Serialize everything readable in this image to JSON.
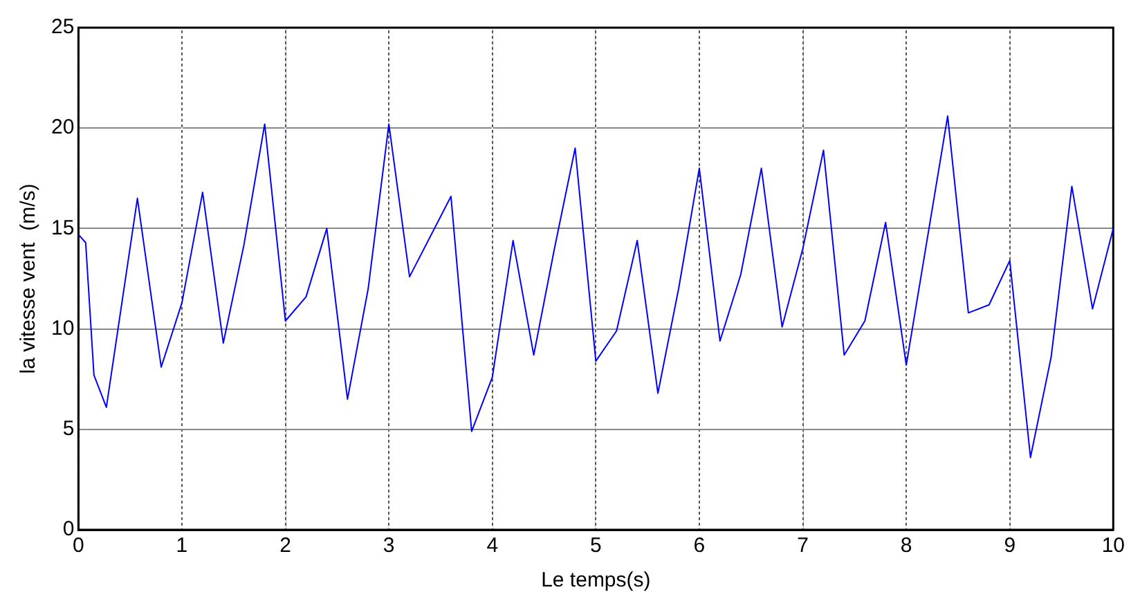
{
  "chart_data": {
    "type": "line",
    "xlabel": "Le temps(s)",
    "ylabel": "la vitesse vent  (m/s)",
    "x": [
      0,
      0.07,
      0.15,
      0.27,
      0.57,
      0.8,
      1.0,
      1.2,
      1.4,
      1.6,
      1.8,
      2.0,
      2.2,
      2.4,
      2.6,
      2.8,
      3.0,
      3.2,
      3.6,
      3.8,
      4.0,
      4.2,
      4.4,
      4.6,
      4.8,
      5.0,
      5.2,
      5.4,
      5.6,
      5.8,
      6.0,
      6.2,
      6.4,
      6.6,
      6.8,
      7.0,
      7.2,
      7.4,
      7.6,
      7.8,
      8.0,
      8.4,
      8.6,
      8.8,
      9.0,
      9.2,
      9.4,
      9.6,
      9.8,
      10.0
    ],
    "series": [
      {
        "color": "#0000ff",
        "values": [
          14.7,
          14.3,
          7.7,
          6.1,
          16.5,
          8.1,
          11.3,
          16.8,
          9.3,
          14.2,
          20.2,
          10.4,
          11.6,
          15.0,
          6.5,
          12.0,
          20.2,
          12.6,
          16.6,
          4.9,
          7.6,
          14.4,
          8.7,
          14.0,
          19.0,
          8.4,
          9.9,
          14.4,
          6.8,
          12.0,
          18.0,
          9.4,
          12.7,
          18.0,
          10.1,
          14.0,
          18.9,
          8.7,
          10.4,
          15.3,
          8.2,
          20.6,
          10.8,
          11.2,
          13.4,
          3.6,
          8.6,
          17.1,
          11.0,
          15.0
        ]
      }
    ],
    "xlim": [
      0,
      10
    ],
    "xticks": [
      0,
      1,
      2,
      3,
      4,
      5,
      6,
      7,
      8,
      9,
      10
    ],
    "ylim": [
      0,
      25
    ],
    "yticks": [
      0,
      5,
      10,
      15,
      20,
      25
    ],
    "grid": true,
    "legend": false,
    "marker": "none",
    "line_style": "solid"
  }
}
